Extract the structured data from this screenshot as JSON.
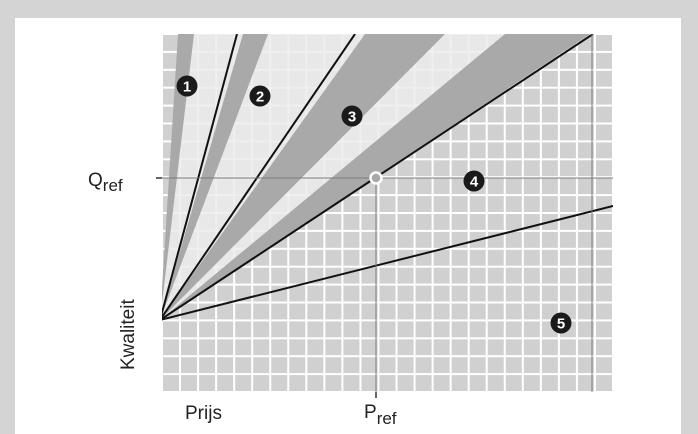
{
  "labels": {
    "q_ref_main": "Q",
    "q_ref_sub": "ref",
    "p_ref_main": "P",
    "p_ref_sub": "ref",
    "y_axis": "Kwaliteit",
    "x_axis": "Prijs"
  },
  "zones": [
    {
      "number": "1"
    },
    {
      "number": "2"
    },
    {
      "number": "3"
    },
    {
      "number": "4"
    },
    {
      "number": "5"
    }
  ],
  "colors": {
    "outer_background": "#d4d4d4",
    "panel_background": "#ffffff",
    "grid_cell": "#d0d0d0",
    "light_region": "#ececec",
    "band": "#a9a9a9",
    "line": "#111111",
    "badge": "#1a1a1a"
  }
}
